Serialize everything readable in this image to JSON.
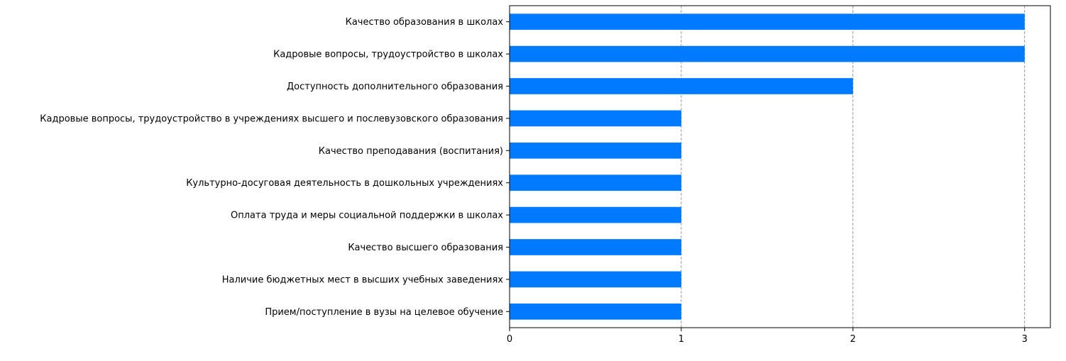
{
  "chart_data": {
    "type": "bar",
    "orientation": "horizontal",
    "title": "",
    "xlabel": "",
    "ylabel": "",
    "categories": [
      "Качество образования в школах",
      "Кадровые вопросы, трудоустройство в школах",
      "Доступность дополнительного образования",
      "Кадровые вопросы, трудоустройство в учреждениях высшего и послевузовского образования",
      "Качество преподавания (воспитания)",
      "Культурно-досуговая деятельность в дошкольных учреждениях",
      "Оплата труда и меры социальной поддержки в школах",
      "Качество высшего образования",
      "Наличие бюджетных мест в высших учебных заведениях",
      "Прием/поступление в вузы на целевое обучение"
    ],
    "values": [
      3,
      3,
      2,
      1,
      1,
      1,
      1,
      1,
      1,
      1
    ],
    "xlim": [
      0,
      3.15
    ],
    "xticks": [
      "0",
      "1",
      "2",
      "3"
    ],
    "grid": "x-dashed",
    "bar_color": "#007bff",
    "grid_color": "#808080"
  }
}
